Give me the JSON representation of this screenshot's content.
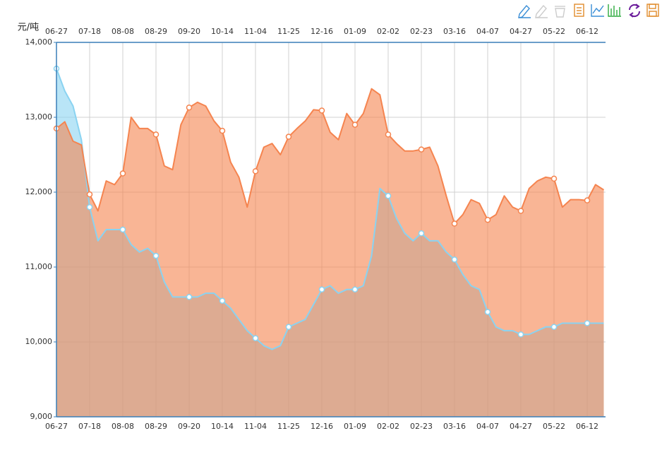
{
  "chart_data": {
    "type": "area",
    "y_label": "元/吨",
    "categories": [
      "06-27",
      null,
      null,
      null,
      "07-18",
      null,
      null,
      null,
      "08-08",
      null,
      null,
      null,
      "08-29",
      null,
      null,
      null,
      "09-20",
      null,
      null,
      null,
      "10-14",
      null,
      null,
      null,
      "11-04",
      null,
      null,
      null,
      "11-25",
      null,
      null,
      null,
      "12-16",
      null,
      null,
      null,
      "01-09",
      null,
      null,
      null,
      "02-02",
      null,
      null,
      null,
      "02-23",
      null,
      null,
      null,
      "03-16",
      null,
      null,
      null,
      "04-07",
      null,
      null,
      null,
      "04-27",
      null,
      null,
      null,
      "05-22",
      null,
      null,
      null,
      "06-12",
      null,
      null
    ],
    "series": [
      {
        "color": "#8ad3f1",
        "values": [
          13650,
          13350,
          13150,
          12700,
          11800,
          11350,
          11500,
          11500,
          11500,
          11300,
          11200,
          11250,
          11150,
          10800,
          10600,
          10600,
          10600,
          10600,
          10650,
          10650,
          10550,
          10450,
          10300,
          10150,
          10050,
          9950,
          9900,
          9950,
          10200,
          10250,
          10300,
          10500,
          10700,
          10750,
          10650,
          10700,
          10700,
          10750,
          11150,
          12050,
          11950,
          11650,
          11450,
          11350,
          11450,
          11350,
          11350,
          11200,
          11100,
          10900,
          10750,
          10700,
          10400,
          10200,
          10150,
          10150,
          10100,
          10100,
          10150,
          10200,
          10200,
          10250,
          10250,
          10250,
          10250,
          10250,
          10250
        ]
      },
      {
        "color": "#f5844f",
        "values": [
          12850,
          12940,
          12680,
          12630,
          11970,
          11750,
          12150,
          12100,
          12250,
          13000,
          12850,
          12850,
          12770,
          12350,
          12300,
          12900,
          13130,
          13200,
          13150,
          12950,
          12820,
          12400,
          12200,
          11800,
          12280,
          12600,
          12650,
          12500,
          12740,
          12850,
          12950,
          13100,
          13090,
          12800,
          12700,
          13050,
          12900,
          13050,
          13380,
          13300,
          12770,
          12650,
          12550,
          12550,
          12570,
          12600,
          12350,
          11950,
          11580,
          11700,
          11900,
          11850,
          11630,
          11700,
          11950,
          11800,
          11750,
          12050,
          12150,
          12200,
          12180,
          11800,
          11900,
          11900,
          11890,
          12100,
          12030
        ]
      }
    ],
    "ylim": [
      9000,
      14000
    ],
    "yticks": [
      {
        "value": 9000,
        "label": "9,000"
      },
      {
        "value": 10000,
        "label": "10,000"
      },
      {
        "value": 11000,
        "label": "11,000"
      },
      {
        "value": 12000,
        "label": "12,000"
      },
      {
        "value": 13000,
        "label": "13,000"
      },
      {
        "value": 14000,
        "label": "14,000"
      }
    ],
    "grid": true
  }
}
